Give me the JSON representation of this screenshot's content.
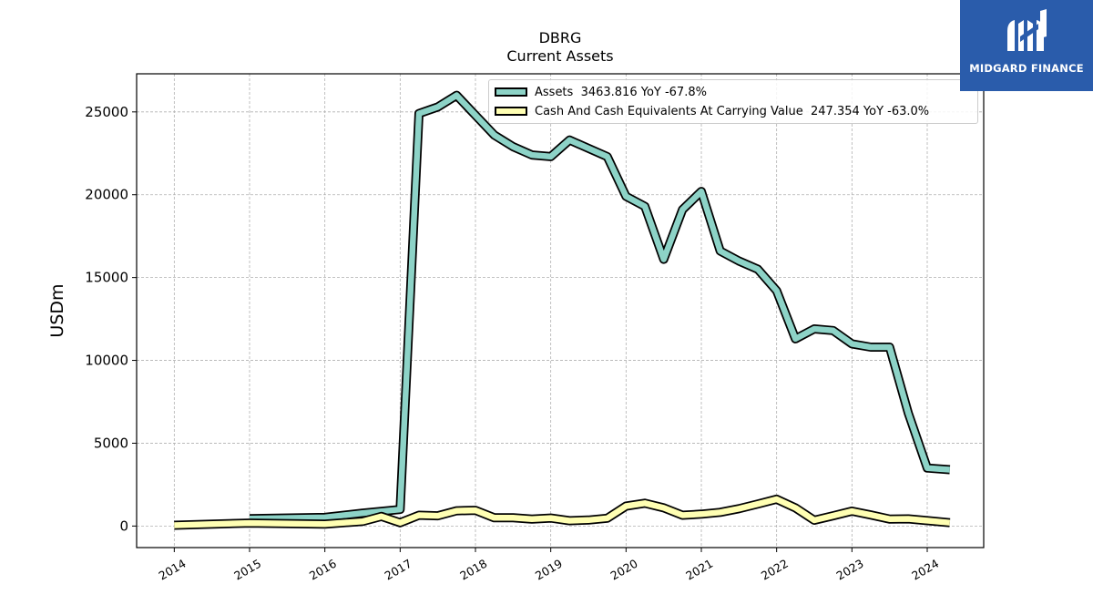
{
  "title": {
    "line1": "DBRG",
    "line2": "Current  Assets"
  },
  "logo": {
    "text": "MIDGARD FINANCE"
  },
  "legend": [
    {
      "label": "Assets  3463.816 YoY -67.8%",
      "color": "#8dd3c7"
    },
    {
      "label": "Cash And Cash Equivalents At Carrying Value  247.354 YoY -63.0%",
      "color": "#ffffb3"
    }
  ],
  "chart_data": {
    "type": "line",
    "title": "DBRG\nCurrent  Assets",
    "ylabel": "USDm",
    "xlabel": "",
    "x_ticks": [
      "2014",
      "2015",
      "2016",
      "2017",
      "2018",
      "2019",
      "2020",
      "2021",
      "2022",
      "2023",
      "2024"
    ],
    "y_ticks": [
      "0",
      "5000",
      "10000",
      "15000",
      "20000",
      "25000"
    ],
    "xlim": [
      2013.5,
      2024.75
    ],
    "ylim": [
      -1300,
      27300
    ],
    "grid": true,
    "legend_position": "top-right",
    "series": [
      {
        "name": "Assets",
        "color": "#8dd3c7",
        "points": [
          [
            2015.0,
            450
          ],
          [
            2016.0,
            520
          ],
          [
            2016.5,
            780
          ],
          [
            2017.0,
            1000
          ],
          [
            2017.25,
            24900
          ],
          [
            2017.5,
            25300
          ],
          [
            2017.75,
            26000
          ],
          [
            2018.0,
            24800
          ],
          [
            2018.25,
            23600
          ],
          [
            2018.5,
            22900
          ],
          [
            2018.75,
            22400
          ],
          [
            2019.0,
            22300
          ],
          [
            2019.25,
            23300
          ],
          [
            2019.5,
            22800
          ],
          [
            2019.75,
            22300
          ],
          [
            2020.0,
            19900
          ],
          [
            2020.25,
            19300
          ],
          [
            2020.5,
            16100
          ],
          [
            2020.75,
            19100
          ],
          [
            2021.0,
            20200
          ],
          [
            2021.25,
            16600
          ],
          [
            2021.5,
            16000
          ],
          [
            2021.75,
            15500
          ],
          [
            2022.0,
            14200
          ],
          [
            2022.25,
            11300
          ],
          [
            2022.5,
            11900
          ],
          [
            2022.75,
            11800
          ],
          [
            2023.0,
            11000
          ],
          [
            2023.25,
            10800
          ],
          [
            2023.5,
            10800
          ],
          [
            2023.75,
            6800
          ],
          [
            2024.0,
            3500
          ],
          [
            2024.3,
            3400
          ]
        ]
      },
      {
        "name": "Cash And Cash Equivalents At Carrying Value",
        "color": "#ffffb3",
        "points": [
          [
            2014.0,
            50
          ],
          [
            2015.0,
            180
          ],
          [
            2016.0,
            120
          ],
          [
            2016.5,
            280
          ],
          [
            2016.75,
            580
          ],
          [
            2017.0,
            200
          ],
          [
            2017.25,
            650
          ],
          [
            2017.5,
            620
          ],
          [
            2017.75,
            920
          ],
          [
            2018.0,
            950
          ],
          [
            2018.25,
            500
          ],
          [
            2018.5,
            500
          ],
          [
            2018.75,
            420
          ],
          [
            2019.0,
            480
          ],
          [
            2019.25,
            320
          ],
          [
            2019.5,
            360
          ],
          [
            2019.75,
            470
          ],
          [
            2020.0,
            1200
          ],
          [
            2020.25,
            1380
          ],
          [
            2020.5,
            1100
          ],
          [
            2020.75,
            650
          ],
          [
            2021.0,
            720
          ],
          [
            2021.25,
            830
          ],
          [
            2021.5,
            1050
          ],
          [
            2021.75,
            1330
          ],
          [
            2022.0,
            1620
          ],
          [
            2022.25,
            1100
          ],
          [
            2022.5,
            350
          ],
          [
            2022.75,
            620
          ],
          [
            2023.0,
            900
          ],
          [
            2023.25,
            670
          ],
          [
            2023.5,
            420
          ],
          [
            2023.75,
            430
          ],
          [
            2024.0,
            330
          ],
          [
            2024.3,
            200
          ]
        ]
      }
    ]
  }
}
